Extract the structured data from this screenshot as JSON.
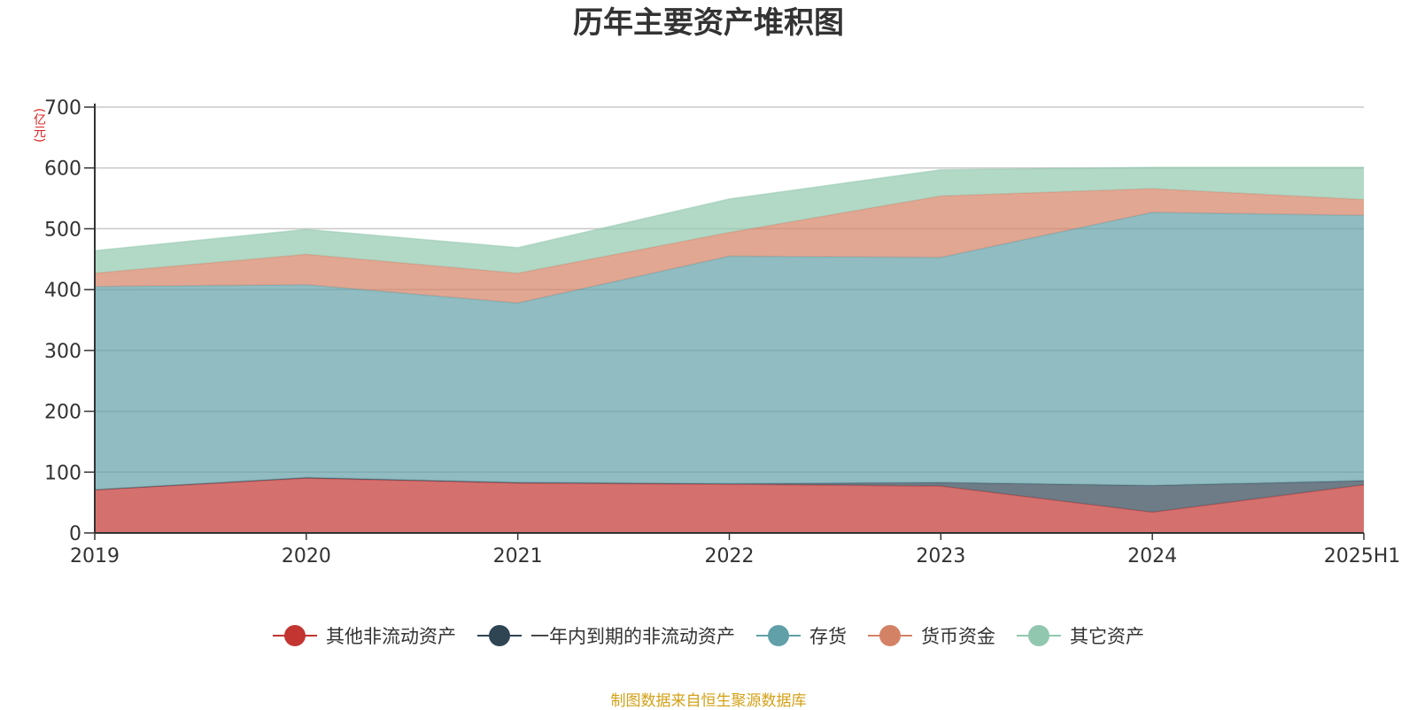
{
  "chart_data": {
    "type": "area",
    "stacked": true,
    "title": "历年主要资产堆积图",
    "unit_label": "(亿元)",
    "x": [
      "2019",
      "2020",
      "2021",
      "2022",
      "2023",
      "2024",
      "2025H1"
    ],
    "ylim": [
      0,
      700
    ],
    "yticks": [
      0,
      100,
      200,
      300,
      400,
      500,
      600,
      700
    ],
    "grid": true,
    "legend_position": "bottom",
    "series": [
      {
        "name": "其他非流动资产",
        "color": "#c23531",
        "values": [
          71,
          90,
          82,
          80,
          77,
          34,
          79
        ]
      },
      {
        "name": "一年内到期的非流动资产",
        "color": "#2f4554",
        "values": [
          0,
          1,
          1,
          1,
          6,
          44,
          7
        ]
      },
      {
        "name": "存货",
        "color": "#61a0a8",
        "values": [
          334,
          317,
          295,
          374,
          370,
          449,
          436
        ]
      },
      {
        "name": "货币资金",
        "color": "#d48265",
        "values": [
          22,
          50,
          49,
          39,
          101,
          39,
          26
        ]
      },
      {
        "name": "其它资产",
        "color": "#91c7ae",
        "values": [
          37,
          41,
          42,
          55,
          43,
          35,
          53
        ]
      }
    ]
  },
  "source_note": "制图数据来自恒生聚源数据库"
}
